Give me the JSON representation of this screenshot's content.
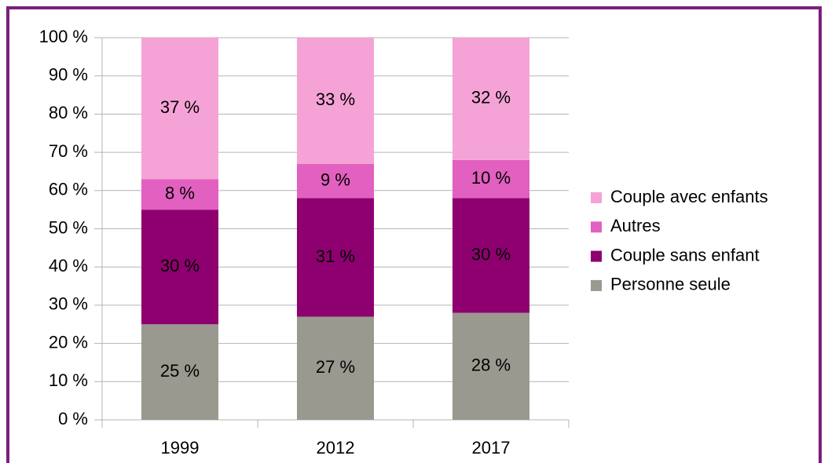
{
  "chart_data": {
    "type": "stacked_bar",
    "categories": [
      "1999",
      "2012",
      "2017"
    ],
    "series": [
      {
        "name": "Personne seule",
        "color": "#999990",
        "values": [
          25,
          27,
          28
        ],
        "value_labels": [
          "25 %",
          "27 %",
          "28 %"
        ]
      },
      {
        "name": "Couple sans enfant",
        "color": "#8e0070",
        "values": [
          30,
          31,
          30
        ],
        "value_labels": [
          "30 %",
          "31 %",
          "30 %"
        ]
      },
      {
        "name": "Autres",
        "color": "#e260c0",
        "values": [
          8,
          9,
          10
        ],
        "value_labels": [
          "8 %",
          "9 %",
          "10 %"
        ]
      },
      {
        "name": "Couple avec enfants",
        "color": "#f5a3d6",
        "values": [
          37,
          33,
          32
        ],
        "value_labels": [
          "37 %",
          "33 %",
          "32 %"
        ]
      }
    ],
    "ylim": [
      0,
      100
    ],
    "yticks": [
      {
        "value": 0,
        "label": "0 %"
      },
      {
        "value": 10,
        "label": "10 %"
      },
      {
        "value": 20,
        "label": "20 %"
      },
      {
        "value": 30,
        "label": "30 %"
      },
      {
        "value": 40,
        "label": "40 %"
      },
      {
        "value": 50,
        "label": "50 %"
      },
      {
        "value": 60,
        "label": "60 %"
      },
      {
        "value": 70,
        "label": "70 %"
      },
      {
        "value": 80,
        "label": "80 %"
      },
      {
        "value": 90,
        "label": "90 %"
      },
      {
        "value": 100,
        "label": "100 %"
      }
    ],
    "grid": true,
    "legend": "right"
  }
}
